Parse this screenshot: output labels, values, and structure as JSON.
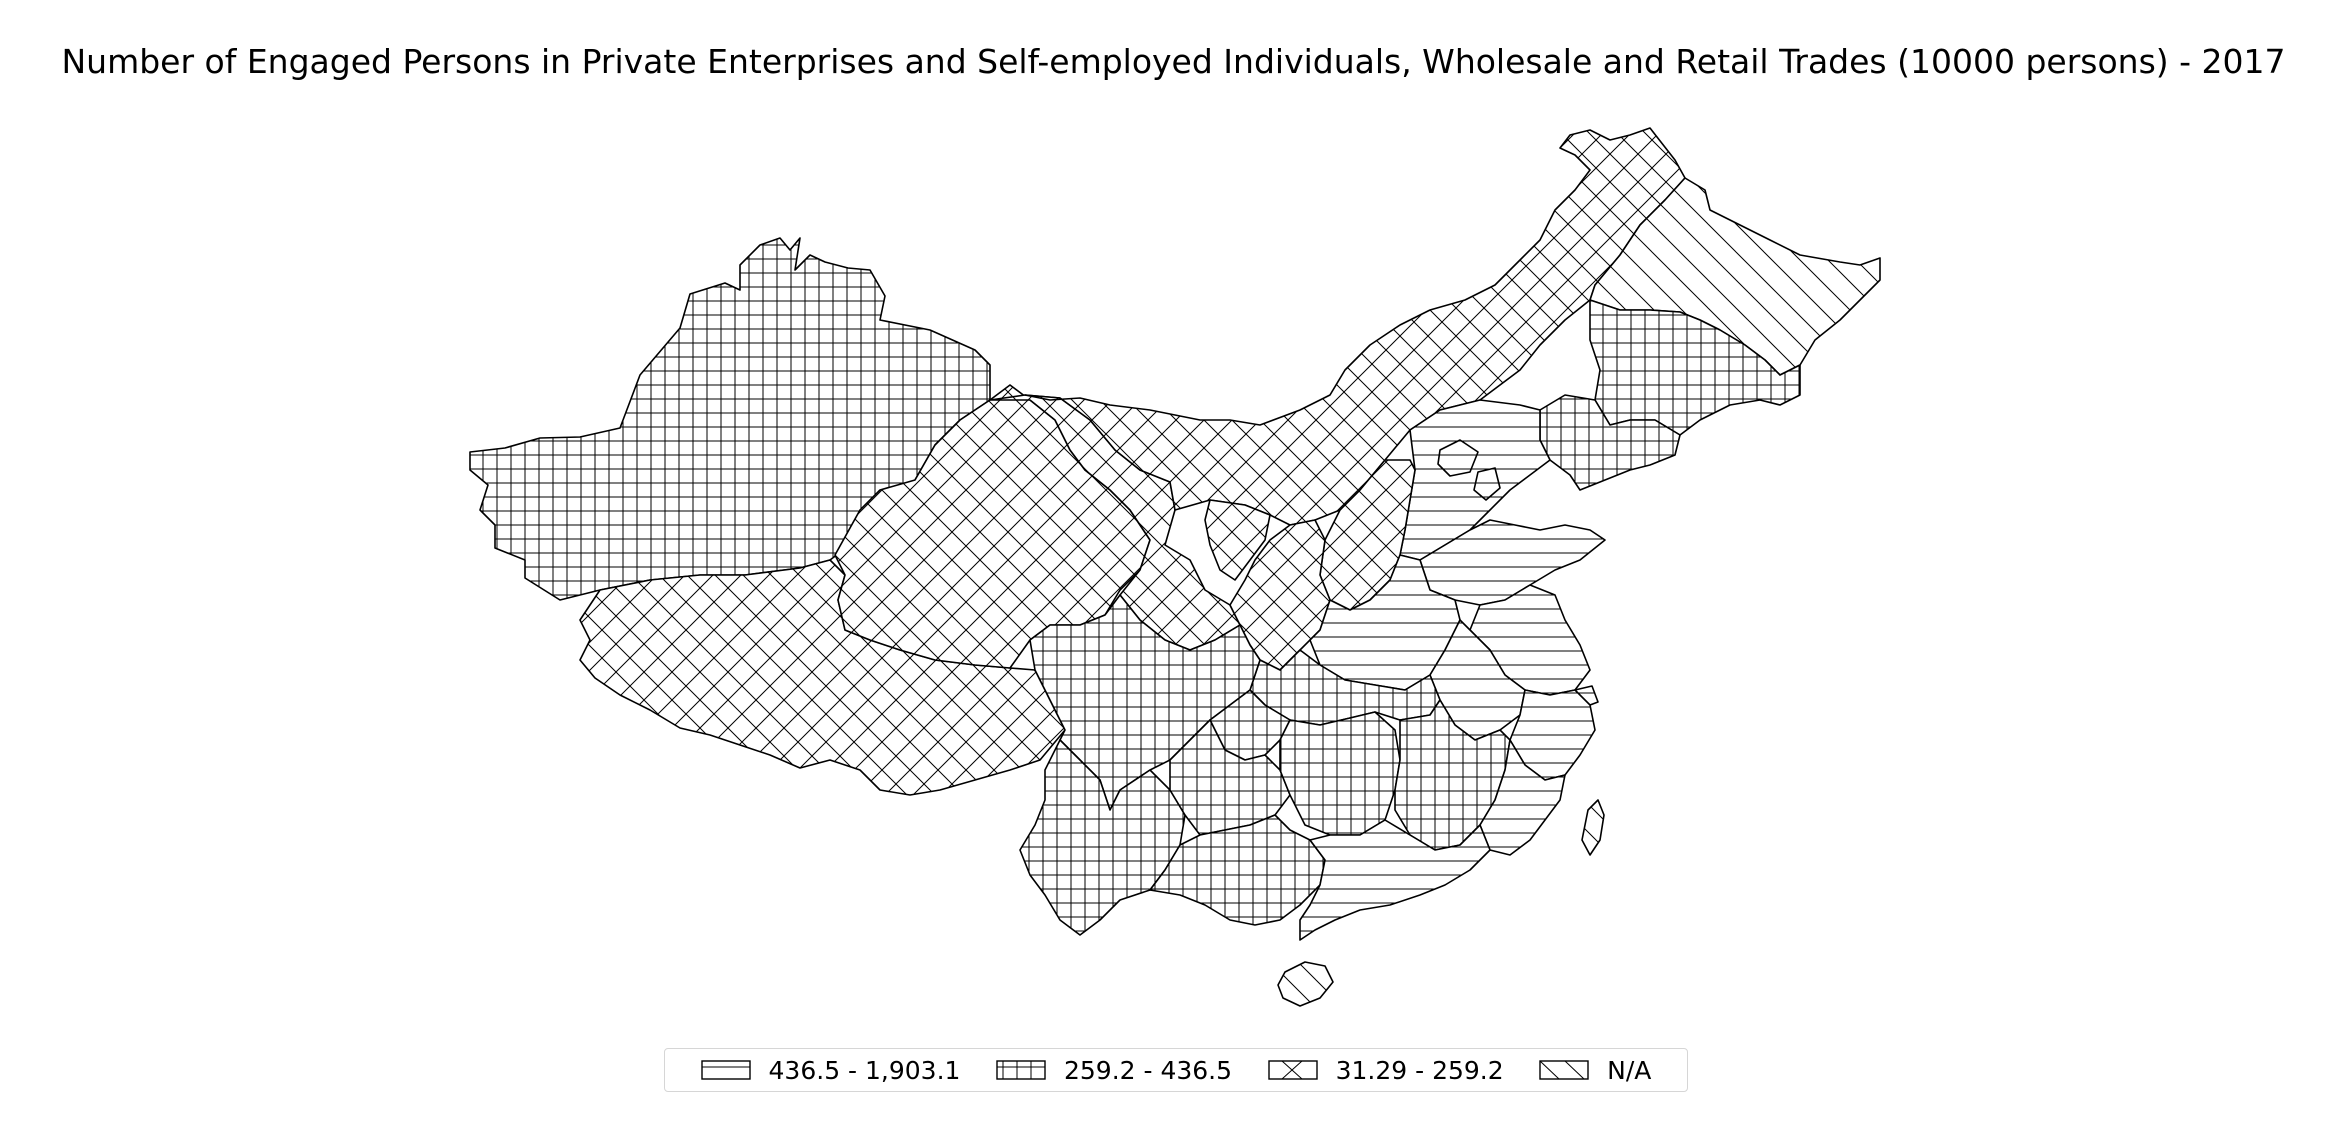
{
  "title": "Number of Engaged Persons in Private Enterprises and Self-employed Individuals, Wholesale and Retail Trades (10000 persons) - 2017",
  "legend": {
    "items": [
      {
        "label": "436.5 - 1,903.1",
        "hatch": "horizontal"
      },
      {
        "label": "259.2 - 436.5",
        "hatch": "grid"
      },
      {
        "label": "31.29 - 259.2",
        "hatch": "cross"
      },
      {
        "label": "N/A",
        "hatch": "diagonal"
      }
    ],
    "placement": "bottom-center"
  },
  "map": {
    "region": "China",
    "line_color": "#000000",
    "fill_color": "#ffffff",
    "classes": {
      "horizontal": "436.5 - 1,903.1",
      "grid": "259.2 - 436.5",
      "cross": "31.29 - 259.2",
      "diagonal": "N/A"
    }
  }
}
